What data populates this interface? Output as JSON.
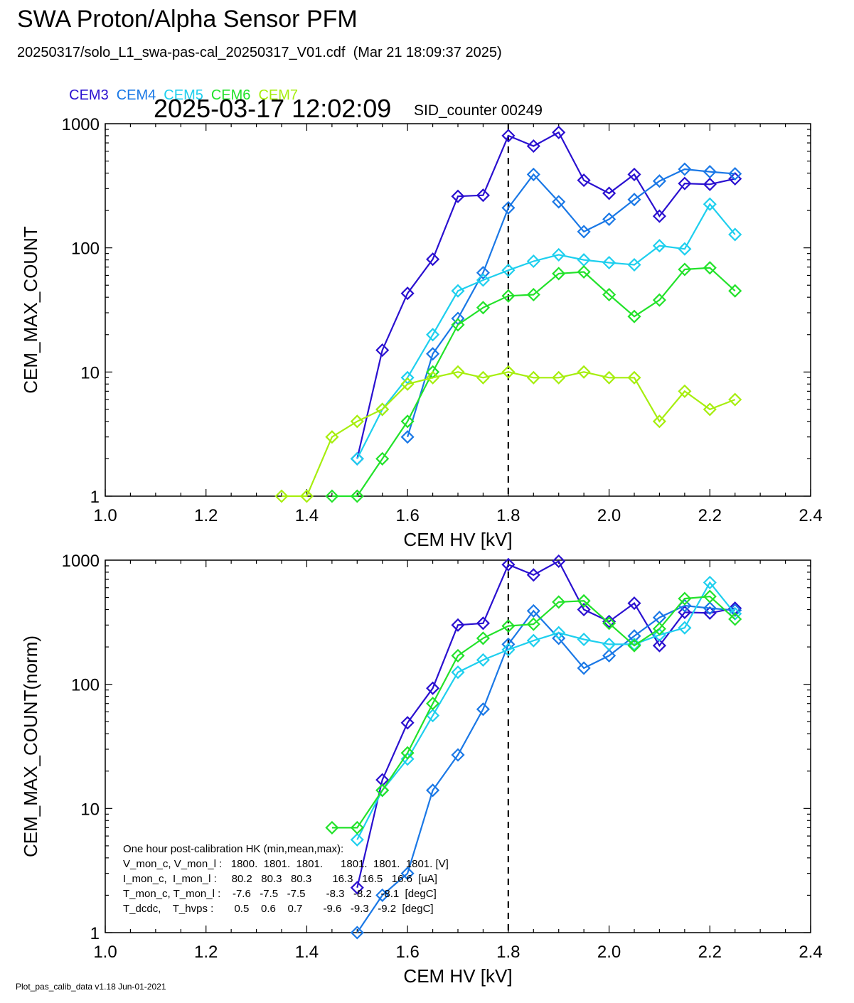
{
  "header": {
    "title": "SWA Proton/Alpha Sensor PFM",
    "file_info": "20250317/solo_L1_swa-pas-cal_20250317_V01.cdf  (Mar 21 18:09:37 2025)",
    "timestamp": "2025-03-17 12:02:09",
    "sid_counter": "SID_counter 00249"
  },
  "legend": [
    {
      "name": "CEM3",
      "color": "#2a10d0"
    },
    {
      "name": "CEM4",
      "color": "#1a78e6"
    },
    {
      "name": "CEM5",
      "color": "#1ecfee"
    },
    {
      "name": "CEM6",
      "color": "#22e22a"
    },
    {
      "name": "CEM7",
      "color": "#a6ee0e"
    }
  ],
  "footer": "Plot_pas_calib_data v1.18 Jun-01-2021",
  "chart_data": [
    {
      "type": "line",
      "xlabel": "CEM HV [kV]",
      "ylabel": "CEM_MAX_COUNT",
      "xlim": [
        1.0,
        2.4
      ],
      "ylim": [
        1,
        1000
      ],
      "yscale": "log",
      "xticks": [
        "1.0",
        "1.2",
        "1.4",
        "1.6",
        "1.8",
        "2.0",
        "2.2",
        "2.4"
      ],
      "yticks": [
        "1",
        "10",
        "100",
        "1000"
      ],
      "marker": "diamond",
      "vline_x": 1.8,
      "series": [
        {
          "name": "CEM3",
          "color": "#2a10d0",
          "x": [
            1.5,
            1.55,
            1.6,
            1.65,
            1.7,
            1.75,
            1.8,
            1.85,
            1.9,
            1.95,
            2.0,
            2.05,
            2.1,
            2.15,
            2.2,
            2.25
          ],
          "y": [
            2,
            15,
            43,
            81,
            260,
            265,
            800,
            660,
            850,
            350,
            275,
            390,
            180,
            330,
            325,
            360
          ]
        },
        {
          "name": "CEM4",
          "color": "#1a78e6",
          "x": [
            1.6,
            1.65,
            1.7,
            1.75,
            1.8,
            1.85,
            1.9,
            1.95,
            2.0,
            2.05,
            2.1,
            2.15,
            2.2,
            2.25
          ],
          "y": [
            3,
            14,
            27,
            63,
            210,
            390,
            235,
            135,
            170,
            245,
            345,
            430,
            410,
            395
          ]
        },
        {
          "name": "CEM5",
          "color": "#1ecfee",
          "x": [
            1.5,
            1.55,
            1.6,
            1.65,
            1.7,
            1.75,
            1.8,
            1.85,
            1.9,
            1.95,
            2.0,
            2.05,
            2.1,
            2.15,
            2.2,
            2.25
          ],
          "y": [
            2,
            5,
            9,
            20,
            45,
            55,
            66,
            78,
            88,
            80,
            76,
            73,
            104,
            98,
            225,
            128
          ]
        },
        {
          "name": "CEM6",
          "color": "#22e22a",
          "x": [
            1.45,
            1.5,
            1.55,
            1.6,
            1.65,
            1.7,
            1.75,
            1.8,
            1.85,
            1.9,
            1.95,
            2.0,
            2.05,
            2.1,
            2.15,
            2.2,
            2.25
          ],
          "y": [
            1,
            1,
            2,
            4,
            10,
            24,
            33,
            41,
            42,
            62,
            64,
            42,
            28,
            38,
            67,
            69,
            45
          ]
        },
        {
          "name": "CEM7",
          "color": "#a6ee0e",
          "x": [
            1.35,
            1.4,
            1.45,
            1.5,
            1.55,
            1.6,
            1.65,
            1.7,
            1.75,
            1.8,
            1.85,
            1.9,
            1.95,
            2.0,
            2.05,
            2.1,
            2.15,
            2.2,
            2.25
          ],
          "y": [
            1,
            1,
            3,
            4,
            5,
            8,
            9,
            10,
            9,
            10,
            9,
            9,
            10,
            9,
            9,
            4,
            7,
            5,
            6
          ]
        }
      ]
    },
    {
      "type": "line",
      "xlabel": "CEM HV [kV]",
      "ylabel": "CEM_MAX_COUNT(norm)",
      "xlim": [
        1.0,
        2.4
      ],
      "ylim": [
        1,
        1000
      ],
      "yscale": "log",
      "xticks": [
        "1.0",
        "1.2",
        "1.4",
        "1.6",
        "1.8",
        "2.0",
        "2.2",
        "2.4"
      ],
      "yticks": [
        "1",
        "10",
        "100",
        "1000"
      ],
      "marker": "diamond",
      "vline_x": 1.8,
      "series": [
        {
          "name": "CEM3",
          "color": "#2a10d0",
          "x": [
            1.5,
            1.55,
            1.6,
            1.65,
            1.7,
            1.75,
            1.8,
            1.85,
            1.9,
            1.95,
            2.0,
            2.05,
            2.1,
            2.15,
            2.2,
            2.25
          ],
          "y": [
            2.3,
            17,
            49,
            93,
            300,
            310,
            920,
            760,
            980,
            400,
            320,
            450,
            205,
            380,
            375,
            410
          ]
        },
        {
          "name": "CEM4",
          "color": "#1a78e6",
          "x": [
            1.5,
            1.55,
            1.6,
            1.65,
            1.7,
            1.75,
            1.8,
            1.85,
            1.9,
            1.95,
            2.0,
            2.05,
            2.1,
            2.15,
            2.2,
            2.25
          ],
          "y": [
            1,
            2,
            3,
            14,
            27,
            63,
            210,
            390,
            235,
            135,
            170,
            245,
            345,
            430,
            410,
            395
          ]
        },
        {
          "name": "CEM5",
          "color": "#1ecfee",
          "x": [
            1.5,
            1.55,
            1.6,
            1.65,
            1.7,
            1.75,
            1.8,
            1.85,
            1.9,
            1.95,
            2.0,
            2.05,
            2.1,
            2.15,
            2.2,
            2.25
          ],
          "y": [
            5.6,
            14,
            25,
            56,
            125,
            157,
            190,
            225,
            260,
            230,
            210,
            210,
            250,
            285,
            660,
            370
          ]
        },
        {
          "name": "CEM6",
          "color": "#22e22a",
          "x": [
            1.45,
            1.5,
            1.55,
            1.6,
            1.65,
            1.7,
            1.75,
            1.8,
            1.85,
            1.9,
            1.95,
            2.0,
            2.05,
            2.1,
            2.15,
            2.2,
            2.25
          ],
          "y": [
            7,
            7,
            14,
            28,
            70,
            170,
            235,
            295,
            305,
            460,
            470,
            310,
            205,
            280,
            490,
            510,
            335
          ]
        }
      ],
      "annotation": {
        "title": "One hour post-calibration HK (min,mean,max):",
        "rows": [
          "V_mon_c, V_mon_l :   1800.  1801.  1801.      1801.  1801.  1801. [V]",
          "I_mon_c,  I_mon_l :     80.2   80.3   80.3       16.3   16.5   16.6  [uA]",
          "T_mon_c, T_mon_l :    -7.6   -7.5   -7.5       -8.3   -8.2   -8.1  [degC]",
          "T_dcdc,    T_hvps :       0.5    0.6    0.7       -9.6   -9.3   -9.2  [degC]"
        ]
      }
    }
  ]
}
